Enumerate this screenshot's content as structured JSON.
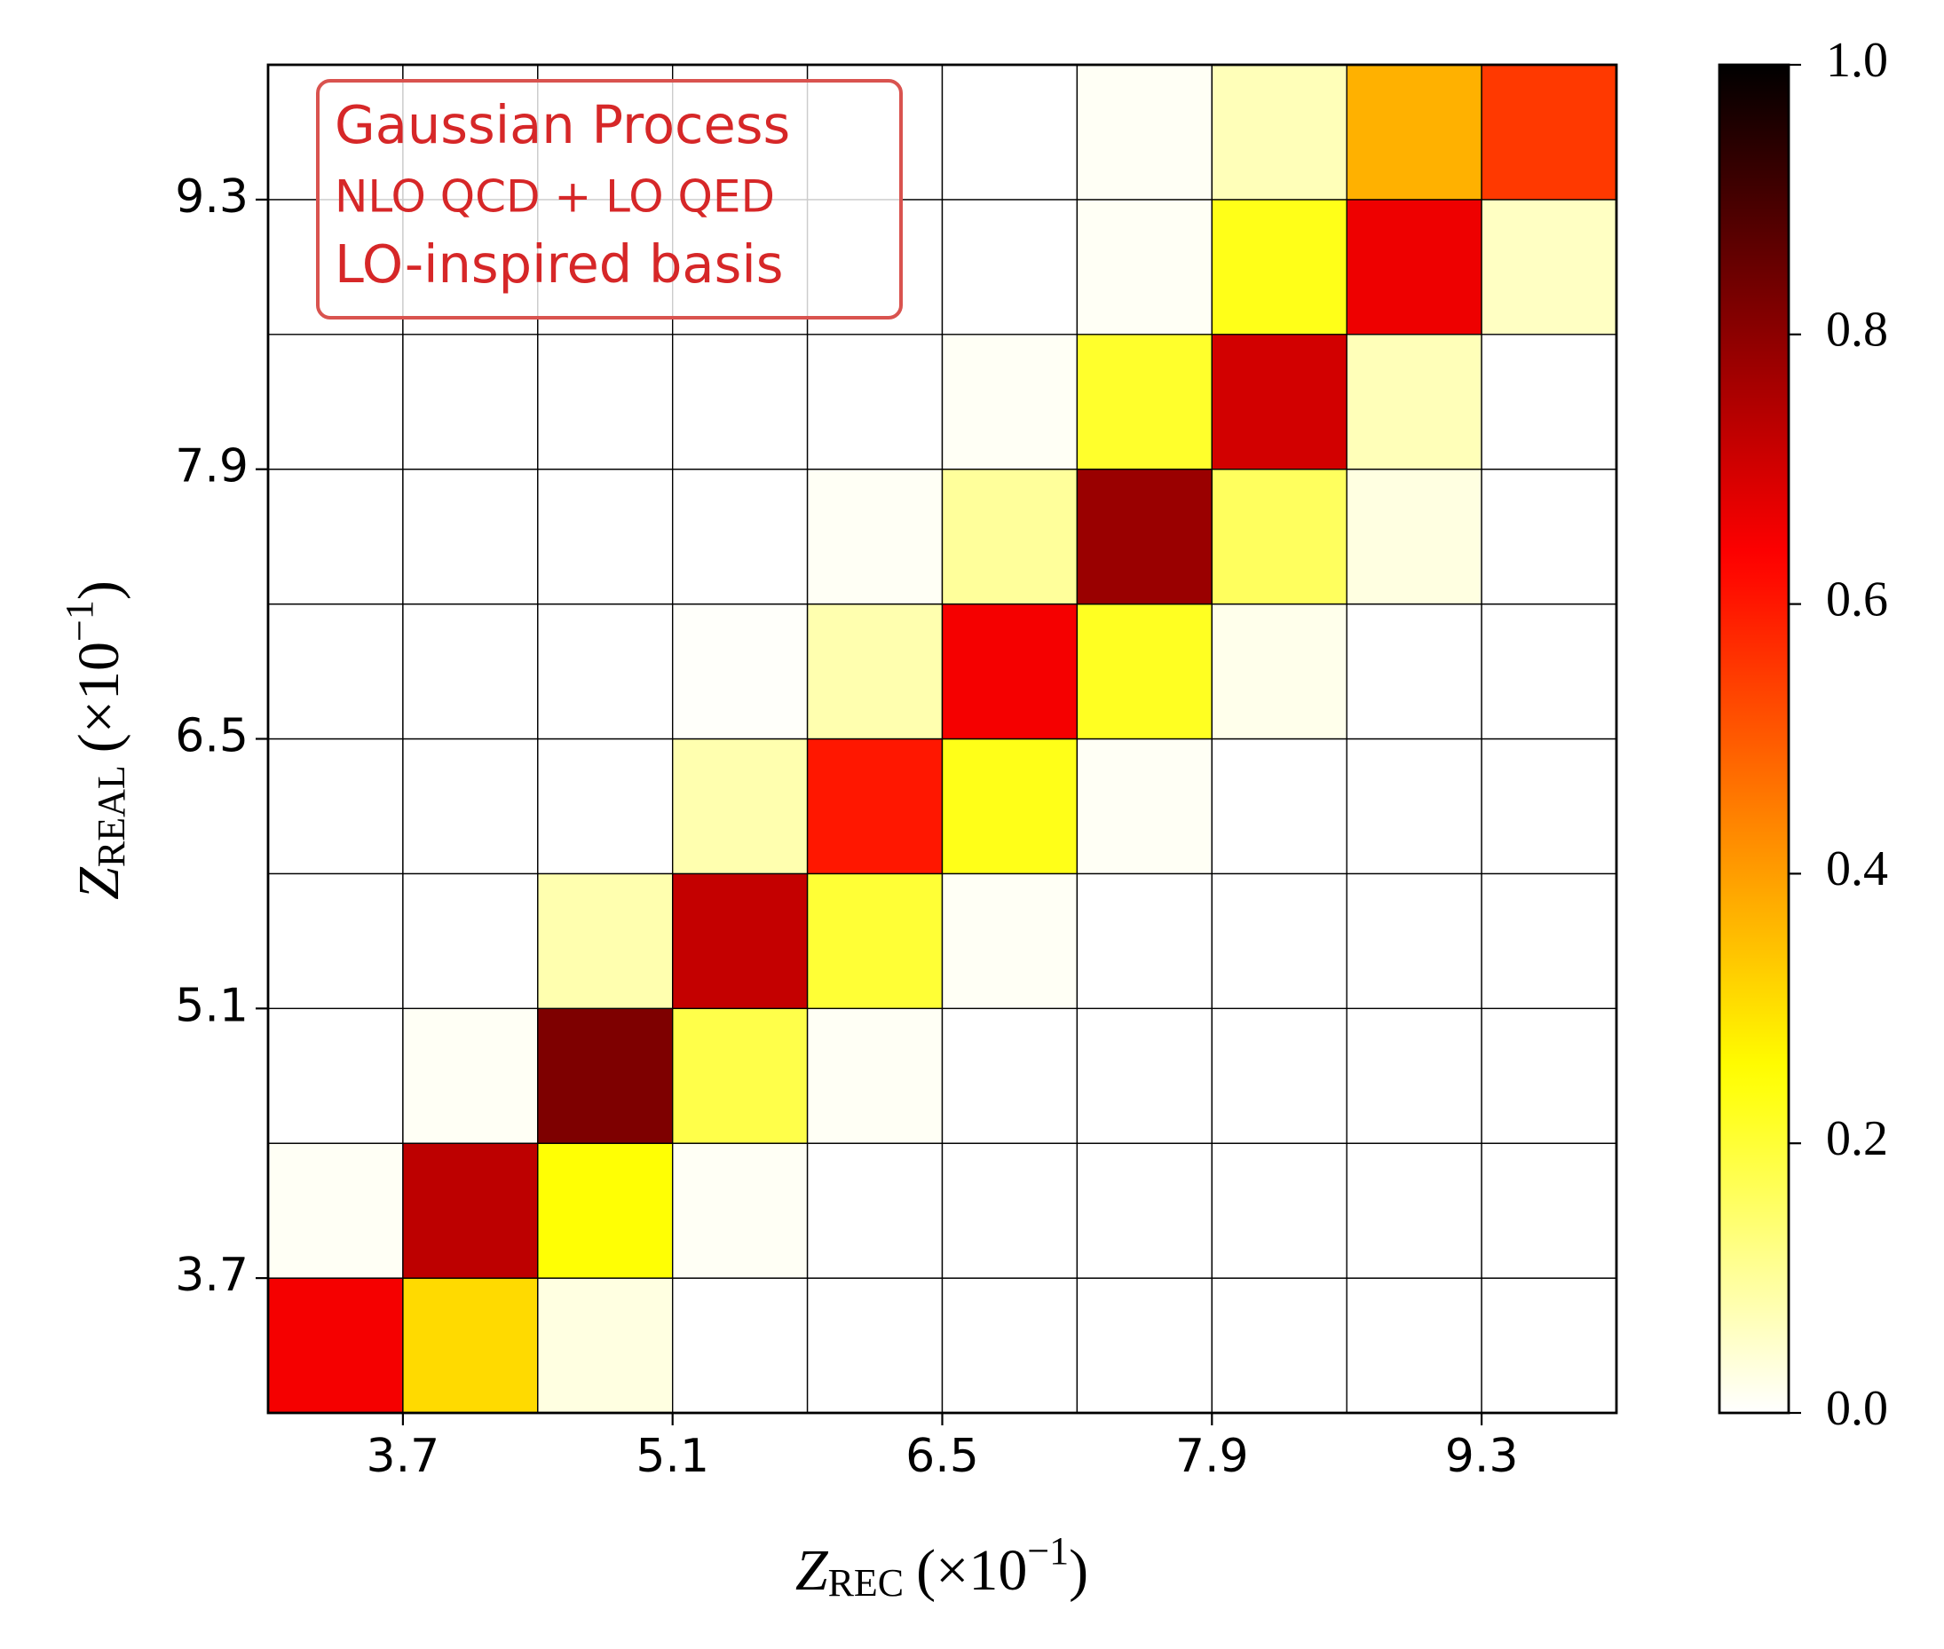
{
  "chart_data": {
    "type": "heatmap",
    "annotation": [
      "Gaussian Process",
      "NLO QCD + LO QED",
      "LO-inspired basis"
    ],
    "x_label": {
      "symbol": "Z",
      "subscript": "REC",
      "factor": "(×10",
      "exponent": "−1",
      "close": ")"
    },
    "y_label": {
      "symbol": "Z",
      "subscript": "REAL",
      "factor": "(×10",
      "exponent": "−1",
      "close": ")"
    },
    "xbins": [
      3.0,
      3.7,
      4.4,
      5.1,
      5.8,
      6.5,
      7.2,
      7.9,
      8.6,
      9.3,
      10.0
    ],
    "ybins": [
      3.0,
      3.7,
      4.4,
      5.1,
      5.8,
      6.5,
      7.2,
      7.9,
      8.6,
      9.3,
      10.0
    ],
    "xlim": [
      3.0,
      10.0
    ],
    "ylim": [
      3.0,
      10.0
    ],
    "xticks": [
      3.7,
      5.1,
      6.5,
      7.9,
      9.3
    ],
    "yticks": [
      3.7,
      5.1,
      6.5,
      7.9,
      9.3
    ],
    "values": [
      [
        0.65,
        0.31,
        0.03,
        0,
        0,
        0,
        0,
        0,
        0,
        0
      ],
      [
        0.01,
        0.73,
        0.25,
        0.01,
        0,
        0,
        0,
        0,
        0,
        0
      ],
      [
        0,
        0.01,
        0.82,
        0.18,
        0.01,
        0,
        0,
        0,
        0,
        0
      ],
      [
        0,
        0,
        0.08,
        0.72,
        0.2,
        0.01,
        0,
        0,
        0,
        0
      ],
      [
        0,
        0,
        0,
        0.08,
        0.6,
        0.23,
        0.01,
        0,
        0,
        0
      ],
      [
        0,
        0,
        0,
        0.005,
        0.08,
        0.65,
        0.22,
        0.02,
        0,
        0
      ],
      [
        0,
        0,
        0,
        0,
        0.01,
        0.1,
        0.78,
        0.16,
        0.03,
        0
      ],
      [
        0,
        0,
        0,
        0,
        0,
        0.01,
        0.21,
        0.7,
        0.07,
        0
      ],
      [
        0,
        0,
        0,
        0,
        0,
        0,
        0.01,
        0.23,
        0.66,
        0.06
      ],
      [
        0,
        0,
        0,
        0,
        0,
        0,
        0.01,
        0.07,
        0.37,
        0.55
      ]
    ],
    "colormap": "hot_r",
    "clim": [
      0,
      1
    ],
    "colorbar_ticks": [
      {
        "value": 0,
        "label": "0.0"
      },
      0.2,
      0.4,
      0.6,
      0.8,
      {
        "value": 1,
        "label": "1.0"
      }
    ]
  }
}
